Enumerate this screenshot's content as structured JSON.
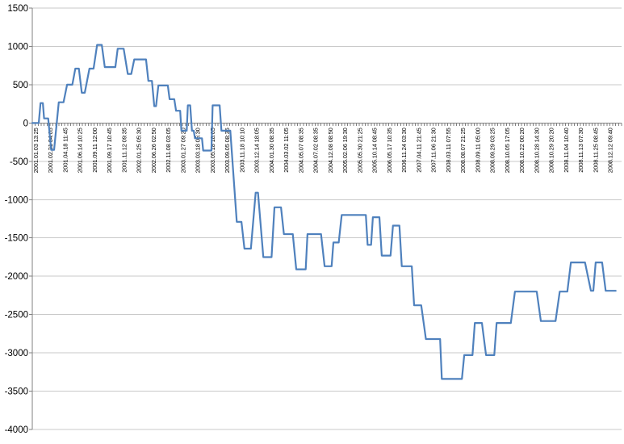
{
  "chart_data": {
    "type": "line",
    "title": "",
    "xlabel": "",
    "ylabel": "",
    "series_name": "equity-curve",
    "line_color": "#4F81BD",
    "gridline_color": "#C9C9C9",
    "axis_color": "#808080",
    "tick_label_color": "#1a1a1a",
    "background_color": "#FFFFFF",
    "ylim": [
      -4000,
      1500
    ],
    "y_ticks": [
      1500,
      1000,
      500,
      0,
      -500,
      -1000,
      -1500,
      -2000,
      -2500,
      -3000,
      -3500,
      -4000
    ],
    "x_point_count": 200,
    "legend": "none",
    "grid": "horizontal",
    "categories": [
      "2001.01.03 13:25",
      "2001.02.21 04:05",
      "2001.04.18 11:45",
      "2001.06.14 10:25",
      "2001.09.11 12:00",
      "2001.09.17 10:45",
      "2001.11.12 09:35",
      "2002.01.25 05:30",
      "2002.06.26 02:50",
      "2002.11.08 03:05",
      "2003.01.27 09:20",
      "2003.03.18 05:30",
      "2003.05.18 18:05",
      "2003.09.05 08:35",
      "2003.11.18 10:10",
      "2003.12.14 18:05",
      "2004.01.30 08:35",
      "2004.03.02 11:05",
      "2004.05.07 08:35",
      "2004.07.02 08:35",
      "2004.12.08 08:50",
      "2005.02.06 19:30",
      "2005.05.30 21:25",
      "2005.10.14 08:45",
      "2006.05.17 10:35",
      "2006.11.24 03:30",
      "2007.04.11 21:45",
      "2007.11.06 21:30",
      "2008.03.11 07:55",
      "2008.08.07 21:25",
      "2008.09.11 05:00",
      "2008.09.29 03:25",
      "2008.10.05 17:05",
      "2008.10.22 00:20",
      "2008.10.28 14:30",
      "2008.10.29 20:20",
      "2008.11.04 10:40",
      "2008.11.13 07:30",
      "2008.11.25 08:45",
      "2008.12.12 09:40"
    ],
    "points": [
      [
        0.0,
        0
      ],
      [
        0.011,
        0
      ],
      [
        0.014,
        260
      ],
      [
        0.018,
        260
      ],
      [
        0.02,
        60
      ],
      [
        0.027,
        60
      ],
      [
        0.032,
        -350
      ],
      [
        0.037,
        -350
      ],
      [
        0.045,
        270
      ],
      [
        0.053,
        270
      ],
      [
        0.059,
        500
      ],
      [
        0.068,
        500
      ],
      [
        0.073,
        710
      ],
      [
        0.079,
        710
      ],
      [
        0.084,
        395
      ],
      [
        0.089,
        395
      ],
      [
        0.097,
        710
      ],
      [
        0.104,
        710
      ],
      [
        0.11,
        1020
      ],
      [
        0.118,
        1020
      ],
      [
        0.123,
        730
      ],
      [
        0.141,
        730
      ],
      [
        0.145,
        970
      ],
      [
        0.155,
        970
      ],
      [
        0.162,
        640
      ],
      [
        0.168,
        640
      ],
      [
        0.173,
        830
      ],
      [
        0.193,
        830
      ],
      [
        0.197,
        550
      ],
      [
        0.203,
        550
      ],
      [
        0.207,
        220
      ],
      [
        0.21,
        220
      ],
      [
        0.214,
        490
      ],
      [
        0.23,
        490
      ],
      [
        0.233,
        310
      ],
      [
        0.241,
        310
      ],
      [
        0.244,
        160
      ],
      [
        0.251,
        160
      ],
      [
        0.253,
        -100
      ],
      [
        0.262,
        -100
      ],
      [
        0.264,
        230
      ],
      [
        0.268,
        230
      ],
      [
        0.271,
        -100
      ],
      [
        0.274,
        -100
      ],
      [
        0.276,
        -200
      ],
      [
        0.288,
        -200
      ],
      [
        0.29,
        -360
      ],
      [
        0.304,
        -360
      ],
      [
        0.306,
        230
      ],
      [
        0.318,
        230
      ],
      [
        0.321,
        -100
      ],
      [
        0.336,
        -100
      ],
      [
        0.347,
        -1290
      ],
      [
        0.355,
        -1290
      ],
      [
        0.36,
        -1640
      ],
      [
        0.371,
        -1640
      ],
      [
        0.379,
        -910
      ],
      [
        0.383,
        -910
      ],
      [
        0.392,
        -1750
      ],
      [
        0.406,
        -1750
      ],
      [
        0.411,
        -1100
      ],
      [
        0.422,
        -1100
      ],
      [
        0.427,
        -1450
      ],
      [
        0.442,
        -1450
      ],
      [
        0.448,
        -1910
      ],
      [
        0.464,
        -1910
      ],
      [
        0.467,
        -1450
      ],
      [
        0.49,
        -1450
      ],
      [
        0.496,
        -1870
      ],
      [
        0.508,
        -1870
      ],
      [
        0.511,
        -1560
      ],
      [
        0.52,
        -1560
      ],
      [
        0.525,
        -1200
      ],
      [
        0.566,
        -1200
      ],
      [
        0.569,
        -1590
      ],
      [
        0.575,
        -1590
      ],
      [
        0.578,
        -1230
      ],
      [
        0.589,
        -1230
      ],
      [
        0.593,
        -1730
      ],
      [
        0.608,
        -1730
      ],
      [
        0.612,
        -1340
      ],
      [
        0.623,
        -1340
      ],
      [
        0.627,
        -1870
      ],
      [
        0.644,
        -1870
      ],
      [
        0.648,
        -2380
      ],
      [
        0.66,
        -2380
      ],
      [
        0.668,
        -2820
      ],
      [
        0.692,
        -2820
      ],
      [
        0.695,
        -3340
      ],
      [
        0.729,
        -3340
      ],
      [
        0.733,
        -3030
      ],
      [
        0.747,
        -3030
      ],
      [
        0.751,
        -2610
      ],
      [
        0.763,
        -2610
      ],
      [
        0.77,
        -3030
      ],
      [
        0.784,
        -3030
      ],
      [
        0.788,
        -2610
      ],
      [
        0.812,
        -2610
      ],
      [
        0.819,
        -2200
      ],
      [
        0.856,
        -2200
      ],
      [
        0.863,
        -2585
      ],
      [
        0.888,
        -2585
      ],
      [
        0.895,
        -2200
      ],
      [
        0.908,
        -2200
      ],
      [
        0.914,
        -1820
      ],
      [
        0.938,
        -1820
      ],
      [
        0.948,
        -2190
      ],
      [
        0.952,
        -2190
      ],
      [
        0.956,
        -1820
      ],
      [
        0.967,
        -1820
      ],
      [
        0.973,
        -2190
      ],
      [
        0.99,
        -2190
      ]
    ]
  }
}
